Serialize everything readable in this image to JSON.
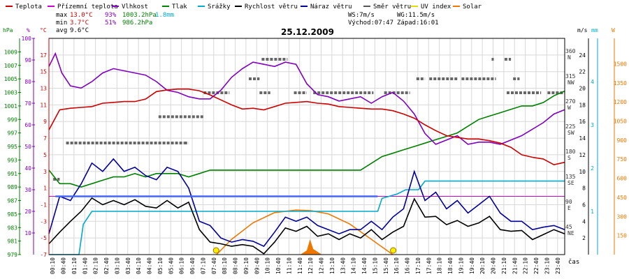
{
  "chart_data": {
    "type": "line",
    "title": "25.12.2009",
    "xlabel": "čas",
    "legend": [
      {
        "name": "Teplota",
        "color": "#cc0000"
      },
      {
        "name": "Přízemní teplota",
        "color": "#cc00cc"
      },
      {
        "name": "Vlhkost",
        "color": "#8000c0"
      },
      {
        "name": "Tlak",
        "color": "#008000"
      },
      {
        "name": "Srážky",
        "color": "#00aacc"
      },
      {
        "name": "Rychlost větru",
        "color": "#000000"
      },
      {
        "name": "Náraz větru",
        "color": "#000099"
      },
      {
        "name": "Směr větru",
        "color": "#555555"
      },
      {
        "name": "UV index",
        "color": "#dddd00"
      },
      {
        "name": "Solar",
        "color": "#ee7700"
      }
    ],
    "stats": {
      "max": {
        "label": "max",
        "temp": "13.0°C",
        "hum": "93%",
        "press": "1003.2hPa",
        "rain": "1.8mm"
      },
      "min": {
        "label": "min",
        "temp": "3.7°C",
        "hum": "51%",
        "press": "986.2hPa"
      },
      "avg": {
        "label": "avg",
        "temp": "9.6°C"
      }
    },
    "info": {
      "ws": "WS:7m/s",
      "wg": "WG:11.5m/s",
      "sunrise": "Východ:07:47",
      "sunset": "Západ:16:01"
    },
    "axes": {
      "hPa": {
        "unit": "hPa",
        "ticks": [
          "979",
          "981",
          "983",
          "985",
          "987",
          "989",
          "991",
          "993",
          "995",
          "997",
          "999",
          "1001",
          "1003",
          "1005",
          "1007",
          "1009"
        ],
        "range": [
          979,
          1011
        ]
      },
      "pct": {
        "unit": "%",
        "ticks": [
          "10",
          "20",
          "30",
          "40",
          "50",
          "60",
          "70",
          "80",
          "90",
          "100"
        ],
        "range": [
          0,
          100
        ]
      },
      "degC": {
        "unit": "°C",
        "ticks": [
          "-7",
          "-5",
          "-3",
          "-1",
          "1",
          "3",
          "5",
          "7",
          "9",
          "11",
          "13",
          "15",
          "17"
        ],
        "range": [
          -7,
          19
        ]
      },
      "ms": {
        "unit": "m/s",
        "ticks": [
          "2",
          "4",
          "6",
          "8",
          "10",
          "12",
          "14",
          "16",
          "18",
          "20",
          "22",
          "24"
        ],
        "range": [
          0,
          26
        ]
      },
      "dir": {
        "ticks": [
          "45 NE",
          "90 E",
          "135 SE",
          "180 S",
          "225 SW",
          "270 W",
          "315 NW",
          "360 N"
        ]
      },
      "mm": {
        "unit": "mm",
        "ticks": [
          "1",
          "2",
          "3",
          "4"
        ],
        "range": [
          0,
          5
        ]
      },
      "W": {
        "unit": "W",
        "ticks": [
          "150",
          "300",
          "450",
          "600",
          "750",
          "900",
          "1050",
          "1200",
          "1350",
          "1500"
        ],
        "range": [
          0,
          1700
        ]
      },
      "x_ticks": [
        "00:10",
        "00:40",
        "01:10",
        "01:40",
        "02:10",
        "02:40",
        "03:10",
        "03:40",
        "04:10",
        "04:40",
        "05:10",
        "05:40",
        "06:10",
        "06:40",
        "07:10",
        "07:40",
        "08:10",
        "08:40",
        "09:10",
        "09:40",
        "10:10",
        "10:40",
        "11:10",
        "11:40",
        "12:10",
        "12:40",
        "13:10",
        "13:40",
        "14:10",
        "14:40",
        "15:10",
        "15:40",
        "16:10",
        "16:40",
        "17:10",
        "17:40",
        "18:10",
        "18:40",
        "19:10",
        "19:40",
        "20:10",
        "20:40",
        "21:10",
        "21:40",
        "22:10",
        "22:40",
        "23:10",
        "23:40"
      ]
    },
    "series": [
      {
        "name": "Teplota",
        "unit": "°C",
        "color": "#cc0000",
        "hours": [
          0,
          0.5,
          1,
          1.5,
          2,
          2.5,
          3,
          3.5,
          4,
          4.5,
          5,
          5.5,
          6,
          6.5,
          7,
          7.5,
          8,
          8.5,
          9,
          9.5,
          10,
          10.5,
          11,
          11.5,
          12,
          12.5,
          13,
          13.5,
          14,
          14.5,
          15,
          15.5,
          16,
          16.5,
          17,
          17.5,
          18,
          18.5,
          19,
          19.5,
          20,
          20.5,
          21,
          21.5,
          22,
          22.5,
          23,
          23.5,
          24
        ],
        "values": [
          8.0,
          10.4,
          10.6,
          10.7,
          10.8,
          11.2,
          11.3,
          11.4,
          11.4,
          11.7,
          12.6,
          12.8,
          12.9,
          12.9,
          12.7,
          12.2,
          11.6,
          11.0,
          10.5,
          10.6,
          10.4,
          10.8,
          11.2,
          11.3,
          11.4,
          11.2,
          11.1,
          10.8,
          10.7,
          10.6,
          10.5,
          10.5,
          10.3,
          9.9,
          9.4,
          8.6,
          7.9,
          7.3,
          7.1,
          6.9,
          6.9,
          6.7,
          6.4,
          5.9,
          5.0,
          4.7,
          4.5,
          3.8,
          4.1
        ]
      },
      {
        "name": "Vlhkost",
        "unit": "%",
        "color": "#8000c0",
        "hours": [
          0,
          0.3,
          0.6,
          1,
          1.5,
          2,
          2.5,
          3,
          3.5,
          4,
          4.5,
          5,
          5.5,
          6,
          6.5,
          7,
          7.5,
          8,
          8.5,
          9,
          9.5,
          10,
          10.5,
          11,
          11.5,
          12,
          12.5,
          13,
          13.5,
          14,
          14.5,
          15,
          15.5,
          16,
          16.5,
          17,
          17.5,
          18,
          18.5,
          19,
          19.5,
          20,
          20.5,
          21,
          21.5,
          22,
          22.5,
          23,
          23.5,
          24
        ],
        "values": [
          87,
          93,
          84,
          78,
          77,
          80,
          84,
          86,
          85,
          84,
          83,
          80,
          76,
          75,
          73,
          72,
          72,
          76,
          82,
          86,
          89,
          88,
          87,
          89,
          88,
          79,
          74,
          73,
          71,
          72,
          73,
          70,
          73,
          75,
          71,
          65,
          56,
          51,
          53,
          55,
          51,
          52,
          52,
          51,
          53,
          55,
          58,
          61,
          65,
          67
        ]
      },
      {
        "name": "Tlak",
        "unit": "hPa",
        "color": "#008000",
        "hours": [
          0,
          0.5,
          1,
          1.5,
          2,
          2.5,
          3,
          3.5,
          4,
          4.5,
          5,
          5.5,
          6,
          6.5,
          7,
          7.5,
          8,
          8.5,
          9,
          9.5,
          10,
          10.5,
          11,
          11.5,
          12,
          12.5,
          13,
          13.5,
          14,
          14.5,
          15,
          15.5,
          16,
          16.5,
          17,
          17.5,
          18,
          18.5,
          19,
          19.5,
          20,
          20.5,
          21,
          21.5,
          22,
          22.5,
          23,
          23.5,
          24
        ],
        "values": [
          991.5,
          989.5,
          989.5,
          989.0,
          989.5,
          990.0,
          990.5,
          990.5,
          991.0,
          990.5,
          991.0,
          991.0,
          991.0,
          990.5,
          991.0,
          991.5,
          991.5,
          991.5,
          991.5,
          991.5,
          991.5,
          991.5,
          991.5,
          991.5,
          991.5,
          991.5,
          991.5,
          991.5,
          991.5,
          991.5,
          992.5,
          993.5,
          994.0,
          994.5,
          995.0,
          995.5,
          996.0,
          996.5,
          997.0,
          998.0,
          999.0,
          999.5,
          1000.0,
          1000.5,
          1001.0,
          1001.0,
          1001.5,
          1002.5,
          1003.2
        ]
      },
      {
        "name": "Srážky",
        "unit": "mm",
        "color": "#00aacc",
        "hours": [
          0,
          1.4,
          1.6,
          2.0,
          2.6,
          15.3,
          15.5,
          16.2,
          16.6,
          17.2,
          17.5,
          18.0,
          24
        ],
        "values": [
          0,
          0,
          0.7,
          1.0,
          1.0,
          1.0,
          1.3,
          1.4,
          1.5,
          1.5,
          1.7,
          1.7,
          1.7
        ]
      },
      {
        "name": "Rychlost větru",
        "unit": "m/s",
        "color": "#000000",
        "hours": [
          0,
          0.5,
          1,
          1.5,
          2,
          2.5,
          3,
          3.5,
          4,
          4.5,
          5,
          5.5,
          6,
          6.5,
          7,
          7.5,
          8,
          8.5,
          9,
          9.5,
          10,
          10.5,
          11,
          11.5,
          12,
          12.5,
          13,
          13.5,
          14,
          14.5,
          15,
          15.5,
          16,
          16.5,
          17,
          17.5,
          18,
          18.5,
          19,
          19.5,
          20,
          20.5,
          21,
          21.5,
          22,
          22.5,
          23,
          23.5,
          24
        ],
        "values": [
          1.3,
          2.7,
          4.0,
          5.2,
          6.8,
          6.0,
          6.5,
          6.0,
          6.6,
          5.8,
          5.6,
          6.5,
          5.6,
          6.3,
          3.0,
          1.5,
          1.3,
          1.0,
          1.2,
          1.0,
          0.1,
          1.5,
          3.2,
          2.8,
          3.4,
          2.2,
          2.5,
          1.8,
          2.5,
          2.0,
          3.0,
          1.8,
          2.7,
          3.4,
          6.7,
          4.5,
          4.6,
          3.6,
          4.1,
          3.4,
          3.8,
          4.6,
          3.0,
          2.8,
          2.9,
          1.8,
          2.4,
          3.0,
          2.5
        ]
      },
      {
        "name": "Náraz větru",
        "unit": "m/s",
        "color": "#000099",
        "hours": [
          0,
          0.5,
          1,
          1.5,
          2,
          2.5,
          3,
          3.5,
          4,
          4.5,
          5,
          5.5,
          6,
          6.5,
          7,
          7.5,
          8,
          8.5,
          9,
          9.5,
          10,
          10.5,
          11,
          11.5,
          12,
          12.5,
          13,
          13.5,
          14,
          14.5,
          15,
          15.5,
          16,
          16.5,
          17,
          17.5,
          18,
          18.5,
          19,
          19.5,
          20,
          20.5,
          21,
          21.5,
          22,
          22.5,
          23,
          23.5,
          24
        ],
        "values": [
          2.5,
          7.0,
          6.5,
          8.5,
          11.0,
          10.0,
          11.5,
          10.0,
          10.5,
          9.5,
          9.0,
          10.5,
          10.0,
          8.0,
          4.0,
          3.5,
          2.0,
          1.5,
          1.8,
          1.6,
          1.0,
          2.7,
          4.5,
          4.0,
          4.5,
          3.5,
          3.0,
          2.5,
          3.0,
          3.0,
          4.0,
          3.0,
          4.5,
          5.5,
          10.0,
          6.5,
          7.5,
          5.5,
          6.5,
          5.0,
          6.0,
          7.0,
          5.0,
          4.0,
          4.0,
          3.0,
          3.3,
          3.5,
          3.0
        ]
      },
      {
        "name": "Solar",
        "unit": "W",
        "color": "#ee7700",
        "hours": [
          7.8,
          8.5,
          9.5,
          10.5,
          11.5,
          12.2,
          13.0,
          14.0,
          15.0,
          16.0
        ],
        "values": [
          0,
          120,
          250,
          330,
          350,
          345,
          320,
          240,
          120,
          0
        ]
      }
    ],
    "sun_markers": [
      {
        "label": "sunrise",
        "hour": 7.78
      },
      {
        "label": "sunset",
        "hour": 16.02
      }
    ],
    "wind_direction": {
      "unit": "deg",
      "segments": [
        {
          "from": 0.2,
          "to": 0.5,
          "deg": 135
        },
        {
          "from": 0.8,
          "to": 6.3,
          "deg": 200
        },
        {
          "from": 6.3,
          "to": 6.5,
          "deg": 200
        },
        {
          "from": 5.1,
          "to": 7.2,
          "deg": 247
        },
        {
          "from": 7.2,
          "to": 8.4,
          "deg": 290
        },
        {
          "from": 9.3,
          "to": 9.8,
          "deg": 315
        },
        {
          "from": 9.8,
          "to": 10.3,
          "deg": 290
        },
        {
          "from": 9.9,
          "to": 11.1,
          "deg": 350
        },
        {
          "from": 11.4,
          "to": 12.0,
          "deg": 290
        },
        {
          "from": 12.3,
          "to": 15.1,
          "deg": 290
        },
        {
          "from": 15.6,
          "to": 16.8,
          "deg": 290
        },
        {
          "from": 17.1,
          "to": 17.5,
          "deg": 315
        },
        {
          "from": 17.7,
          "to": 19.0,
          "deg": 315
        },
        {
          "from": 19.2,
          "to": 20.8,
          "deg": 315
        },
        {
          "from": 20.6,
          "to": 20.7,
          "deg": 350
        },
        {
          "from": 21.2,
          "to": 21.5,
          "deg": 350
        },
        {
          "from": 21.6,
          "to": 21.9,
          "deg": 315
        },
        {
          "from": 21.3,
          "to": 22.9,
          "deg": 290
        },
        {
          "from": 23.2,
          "to": 24.0,
          "deg": 290
        }
      ]
    },
    "uv_index": {
      "name": "UV index",
      "values": []
    }
  }
}
